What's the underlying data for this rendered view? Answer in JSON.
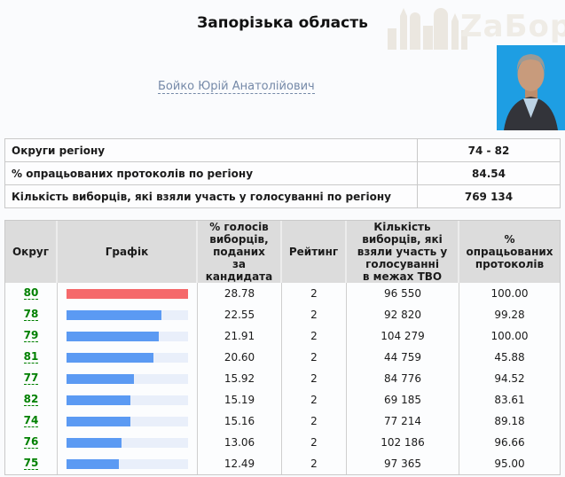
{
  "colors": {
    "bar_red": "#f5696b",
    "bar_blue": "#5b9af3",
    "bar_track": "#e9effa",
    "district_link": "#008000",
    "candidate_link": "#7589a8"
  },
  "header": {
    "title": "Запорізька область",
    "candidate": "Бойко Юрій Анатолійович",
    "watermark": "ZаБор"
  },
  "summary": {
    "rows": [
      {
        "label": "Округи регіону",
        "value": "74 - 82"
      },
      {
        "label": "% опрацьованих протоколів по регіону",
        "value": "84.54"
      },
      {
        "label": "Кількість виборців, які взяли участь у голосуванні по регіону",
        "value": "769 134"
      }
    ]
  },
  "table": {
    "headers": [
      "Округ",
      "Графік",
      "% голосів\nвиборців,\nподаних\nза\nкандидата",
      "Рейтинг",
      "Кількість\nвиборців, які\nвзяли участь у\nголосуванні\nв межах ТВО",
      "%\nопрацьованих\nпротоколів"
    ],
    "rows": [
      {
        "district": "80",
        "percent": 28.78,
        "rating": "2",
        "voters": "96 550",
        "protocols": "100.00",
        "bar": "red"
      },
      {
        "district": "78",
        "percent": 22.55,
        "rating": "2",
        "voters": "92 820",
        "protocols": "99.28",
        "bar": "blue"
      },
      {
        "district": "79",
        "percent": 21.91,
        "rating": "2",
        "voters": "104 279",
        "protocols": "100.00",
        "bar": "blue"
      },
      {
        "district": "81",
        "percent": 20.6,
        "rating": "2",
        "voters": "44 759",
        "protocols": "45.88",
        "bar": "blue"
      },
      {
        "district": "77",
        "percent": 15.92,
        "rating": "2",
        "voters": "84 776",
        "protocols": "94.52",
        "bar": "blue"
      },
      {
        "district": "82",
        "percent": 15.19,
        "rating": "2",
        "voters": "69 185",
        "protocols": "83.61",
        "bar": "blue"
      },
      {
        "district": "74",
        "percent": 15.16,
        "rating": "2",
        "voters": "77 214",
        "protocols": "89.18",
        "bar": "blue"
      },
      {
        "district": "76",
        "percent": 13.06,
        "rating": "2",
        "voters": "102 186",
        "protocols": "96.66",
        "bar": "blue"
      },
      {
        "district": "75",
        "percent": 12.49,
        "rating": "2",
        "voters": "97 365",
        "protocols": "95.00",
        "bar": "blue"
      }
    ]
  }
}
